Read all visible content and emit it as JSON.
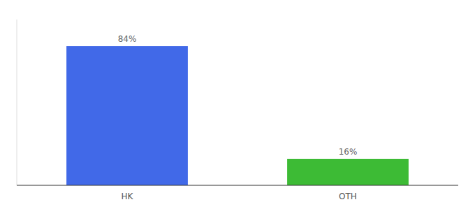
{
  "chart_data": {
    "type": "bar",
    "categories": [
      "HK",
      "OTH"
    ],
    "values": [
      84,
      16
    ],
    "value_labels": [
      "84%",
      "16%"
    ],
    "colors": [
      "#4169e8",
      "#3dbb35"
    ],
    "ylim": [
      0,
      100
    ],
    "data_labels": true,
    "tick_labels": "x"
  }
}
